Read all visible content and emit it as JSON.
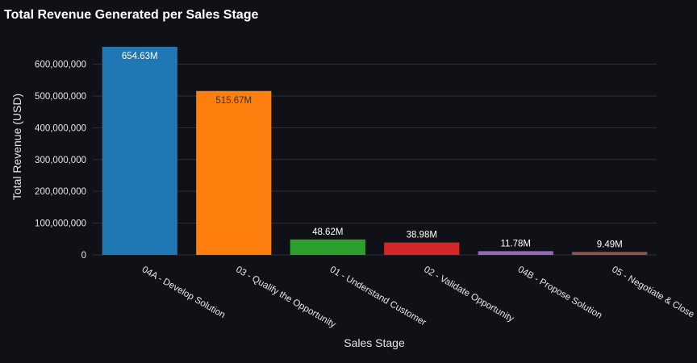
{
  "chart_data": {
    "type": "bar",
    "title": "Total Revenue Generated per Sales Stage",
    "xlabel": "Sales Stage",
    "ylabel": "Total Revenue (USD)",
    "ylim": [
      0,
      680000000
    ],
    "yticks": [
      0,
      100000000,
      200000000,
      300000000,
      400000000,
      500000000,
      600000000
    ],
    "ytick_labels": [
      "0",
      "100,000,000",
      "200,000,000",
      "300,000,000",
      "400,000,000",
      "500,000,000",
      "600,000,000"
    ],
    "categories": [
      "04A - Develop Solution",
      "03 - Qualify the Opportunity",
      "01 - Understand Customer",
      "02 - Validate Opportunity",
      "04B - Propose Solution",
      "05 - Negotiate & Close"
    ],
    "values": [
      654630000,
      515670000,
      48620000,
      38980000,
      11780000,
      9490000
    ],
    "data_labels": [
      "654.63M",
      "515.67M",
      "48.62M",
      "38.98M",
      "11.78M",
      "9.49M"
    ],
    "label_inside": [
      true,
      true,
      false,
      false,
      false,
      false
    ],
    "colors": [
      "#1f77b4",
      "#ff7f0e",
      "#2ca02c",
      "#d62728",
      "#9467bd",
      "#8c564b"
    ],
    "label_colors": [
      "#ffffff",
      "#333333",
      "#ffffff",
      "#ffffff",
      "#ffffff",
      "#ffffff"
    ],
    "grid": true,
    "background": "#0f1117",
    "grid_color": "#2e3138",
    "text_color": "#e6e6e6"
  }
}
